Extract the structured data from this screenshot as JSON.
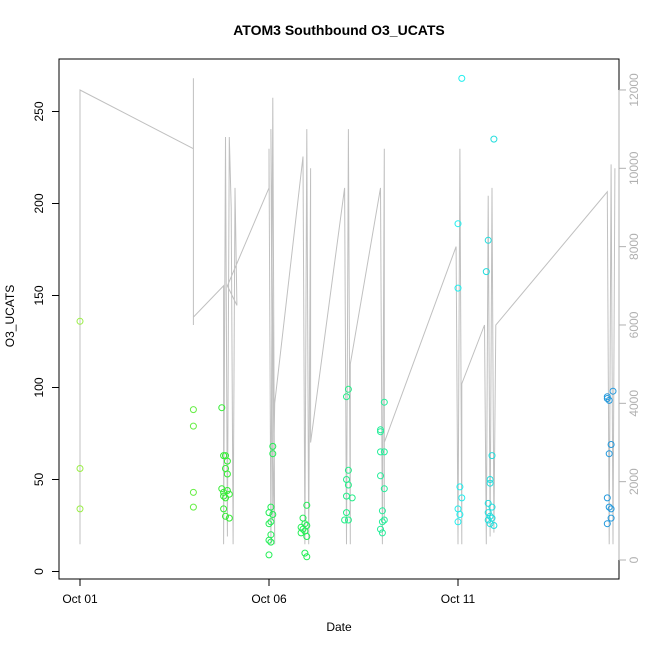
{
  "chart_data": {
    "type": "scatter",
    "title": "ATOM3 Southbound O3_UCATS",
    "xlabel": "Date",
    "ylabel": "O3_UCATS",
    "x_ticks": [
      "Oct 01",
      "Oct 06",
      "Oct 11"
    ],
    "x_tick_days": [
      1,
      6,
      11
    ],
    "xlim": [
      1,
      15
    ],
    "ylim": [
      0,
      260
    ],
    "y_ticks": [
      0,
      50,
      100,
      150,
      200,
      250
    ],
    "y2_ticks": [
      0,
      2000,
      4000,
      6000,
      8000,
      10000,
      12000
    ],
    "y2lim": [
      0,
      12000
    ],
    "grid": false,
    "legend": "none",
    "colors": {
      "line": "#c0c0c0",
      "axis": "#000000",
      "y2_axis": "#b0b0b0"
    },
    "points": [
      {
        "x": 1.0,
        "y": 136,
        "c": "#99ee44"
      },
      {
        "x": 1.0,
        "y": 56,
        "c": "#99ee44"
      },
      {
        "x": 1.0,
        "y": 34,
        "c": "#99ee44"
      },
      {
        "x": 4.0,
        "y": 88,
        "c": "#66ee44"
      },
      {
        "x": 4.0,
        "y": 79,
        "c": "#66ee44"
      },
      {
        "x": 4.0,
        "y": 43,
        "c": "#66ee44"
      },
      {
        "x": 4.0,
        "y": 35,
        "c": "#66ee44"
      },
      {
        "x": 4.75,
        "y": 89,
        "c": "#33ee33"
      },
      {
        "x": 4.8,
        "y": 63,
        "c": "#33ee33"
      },
      {
        "x": 4.85,
        "y": 63,
        "c": "#33ee33"
      },
      {
        "x": 4.9,
        "y": 60,
        "c": "#33ee33"
      },
      {
        "x": 4.85,
        "y": 56,
        "c": "#33ee33"
      },
      {
        "x": 4.9,
        "y": 53,
        "c": "#33ee33"
      },
      {
        "x": 4.75,
        "y": 45,
        "c": "#33ee33"
      },
      {
        "x": 4.8,
        "y": 43,
        "c": "#33ee33"
      },
      {
        "x": 4.9,
        "y": 44,
        "c": "#33ee33"
      },
      {
        "x": 4.95,
        "y": 42,
        "c": "#33ee33"
      },
      {
        "x": 4.8,
        "y": 41,
        "c": "#33ee33"
      },
      {
        "x": 4.85,
        "y": 40,
        "c": "#33ee33"
      },
      {
        "x": 4.8,
        "y": 34,
        "c": "#33ee33"
      },
      {
        "x": 4.85,
        "y": 30,
        "c": "#33ee33"
      },
      {
        "x": 4.95,
        "y": 29,
        "c": "#33ee33"
      },
      {
        "x": 6.1,
        "y": 68,
        "c": "#22ee55"
      },
      {
        "x": 6.1,
        "y": 64,
        "c": "#22ee55"
      },
      {
        "x": 6.05,
        "y": 35,
        "c": "#22ee55"
      },
      {
        "x": 6.0,
        "y": 32,
        "c": "#22ee55"
      },
      {
        "x": 6.1,
        "y": 31,
        "c": "#22ee55"
      },
      {
        "x": 6.05,
        "y": 27,
        "c": "#22ee55"
      },
      {
        "x": 6.0,
        "y": 26,
        "c": "#22ee55"
      },
      {
        "x": 6.05,
        "y": 20,
        "c": "#22ee55"
      },
      {
        "x": 6.0,
        "y": 17,
        "c": "#22ee55"
      },
      {
        "x": 6.05,
        "y": 16,
        "c": "#22ee55"
      },
      {
        "x": 6.0,
        "y": 9,
        "c": "#22ee55"
      },
      {
        "x": 7.0,
        "y": 36,
        "c": "#22ee55"
      },
      {
        "x": 6.9,
        "y": 29,
        "c": "#22ee55"
      },
      {
        "x": 6.95,
        "y": 26,
        "c": "#22ee55"
      },
      {
        "x": 7.0,
        "y": 25,
        "c": "#22ee55"
      },
      {
        "x": 6.85,
        "y": 24,
        "c": "#22ee55"
      },
      {
        "x": 6.9,
        "y": 23,
        "c": "#22ee55"
      },
      {
        "x": 6.95,
        "y": 22,
        "c": "#22ee55"
      },
      {
        "x": 6.85,
        "y": 21,
        "c": "#22ee55"
      },
      {
        "x": 7.0,
        "y": 19,
        "c": "#22ee55"
      },
      {
        "x": 6.95,
        "y": 10,
        "c": "#22ee55"
      },
      {
        "x": 7.0,
        "y": 8,
        "c": "#22ee55"
      },
      {
        "x": 8.1,
        "y": 99,
        "c": "#22ee88"
      },
      {
        "x": 8.05,
        "y": 95,
        "c": "#22ee88"
      },
      {
        "x": 8.1,
        "y": 55,
        "c": "#22ee88"
      },
      {
        "x": 8.05,
        "y": 50,
        "c": "#22ee88"
      },
      {
        "x": 8.1,
        "y": 47,
        "c": "#22ee88"
      },
      {
        "x": 8.05,
        "y": 41,
        "c": "#22ee88"
      },
      {
        "x": 8.2,
        "y": 40,
        "c": "#22ee88"
      },
      {
        "x": 8.05,
        "y": 32,
        "c": "#22ee88"
      },
      {
        "x": 8.0,
        "y": 28,
        "c": "#22ee88"
      },
      {
        "x": 8.1,
        "y": 28,
        "c": "#22ee88"
      },
      {
        "x": 9.05,
        "y": 92,
        "c": "#22ee99"
      },
      {
        "x": 8.95,
        "y": 77,
        "c": "#22ee99"
      },
      {
        "x": 8.95,
        "y": 76,
        "c": "#22ee99"
      },
      {
        "x": 8.95,
        "y": 65,
        "c": "#22ee99"
      },
      {
        "x": 9.05,
        "y": 65,
        "c": "#22ee99"
      },
      {
        "x": 8.95,
        "y": 52,
        "c": "#22ee99"
      },
      {
        "x": 9.05,
        "y": 45,
        "c": "#22ee99"
      },
      {
        "x": 9.0,
        "y": 33,
        "c": "#22ee99"
      },
      {
        "x": 9.05,
        "y": 28,
        "c": "#22ee99"
      },
      {
        "x": 9.0,
        "y": 27,
        "c": "#22ee99"
      },
      {
        "x": 8.95,
        "y": 23,
        "c": "#22ee99"
      },
      {
        "x": 9.0,
        "y": 21,
        "c": "#22ee99"
      },
      {
        "x": 11.1,
        "y": 268,
        "c": "#22eeee"
      },
      {
        "x": 11.0,
        "y": 189,
        "c": "#22eeee"
      },
      {
        "x": 11.0,
        "y": 154,
        "c": "#22eeee"
      },
      {
        "x": 11.05,
        "y": 46,
        "c": "#22eeee"
      },
      {
        "x": 11.1,
        "y": 40,
        "c": "#22eeee"
      },
      {
        "x": 11.0,
        "y": 34,
        "c": "#22eeee"
      },
      {
        "x": 11.05,
        "y": 31,
        "c": "#22eeee"
      },
      {
        "x": 11.0,
        "y": 27,
        "c": "#22eeee"
      },
      {
        "x": 11.95,
        "y": 235,
        "c": "#22dddd"
      },
      {
        "x": 11.8,
        "y": 180,
        "c": "#22dddd"
      },
      {
        "x": 11.75,
        "y": 163,
        "c": "#22dddd"
      },
      {
        "x": 11.9,
        "y": 63,
        "c": "#22dddd"
      },
      {
        "x": 11.85,
        "y": 50,
        "c": "#22dddd"
      },
      {
        "x": 11.85,
        "y": 48,
        "c": "#22dddd"
      },
      {
        "x": 11.8,
        "y": 37,
        "c": "#22dddd"
      },
      {
        "x": 11.9,
        "y": 35,
        "c": "#22dddd"
      },
      {
        "x": 11.8,
        "y": 32,
        "c": "#22dddd"
      },
      {
        "x": 11.85,
        "y": 30,
        "c": "#22dddd"
      },
      {
        "x": 11.9,
        "y": 29,
        "c": "#22dddd"
      },
      {
        "x": 11.8,
        "y": 28,
        "c": "#22dddd"
      },
      {
        "x": 11.85,
        "y": 26,
        "c": "#22dddd"
      },
      {
        "x": 11.95,
        "y": 25,
        "c": "#22dddd"
      },
      {
        "x": 15.1,
        "y": 98,
        "c": "#2299dd"
      },
      {
        "x": 14.95,
        "y": 95,
        "c": "#2299dd"
      },
      {
        "x": 14.95,
        "y": 94,
        "c": "#2299dd"
      },
      {
        "x": 15.0,
        "y": 93,
        "c": "#2299dd"
      },
      {
        "x": 15.05,
        "y": 69,
        "c": "#2299dd"
      },
      {
        "x": 15.0,
        "y": 64,
        "c": "#2299dd"
      },
      {
        "x": 14.95,
        "y": 40,
        "c": "#2299dd"
      },
      {
        "x": 15.0,
        "y": 35,
        "c": "#2299dd"
      },
      {
        "x": 15.05,
        "y": 34,
        "c": "#2299dd"
      },
      {
        "x": 15.05,
        "y": 29,
        "c": "#2299dd"
      },
      {
        "x": 14.95,
        "y": 26,
        "c": "#2299dd"
      }
    ],
    "y2_line": [
      [
        1.0,
        400
      ],
      [
        1.0,
        12000
      ],
      [
        4.0,
        10500
      ],
      [
        4.0,
        6000
      ],
      [
        4.0,
        12300
      ],
      [
        4.0,
        6500
      ],
      [
        4.0,
        6200
      ],
      [
        4.8,
        7000
      ],
      [
        4.8,
        400
      ],
      [
        4.85,
        10800
      ],
      [
        4.9,
        600
      ],
      [
        4.95,
        10800
      ],
      [
        5.0,
        9000
      ],
      [
        5.05,
        400
      ],
      [
        5.1,
        9500
      ],
      [
        5.15,
        6500
      ],
      [
        4.9,
        7000
      ],
      [
        6.0,
        9500
      ],
      [
        6.0,
        10500
      ],
      [
        6.05,
        400
      ],
      [
        6.1,
        11800
      ],
      [
        6.15,
        400
      ],
      [
        6.05,
        11000
      ],
      [
        6.1,
        1000
      ],
      [
        6.15,
        4000
      ],
      [
        6.9,
        10300
      ],
      [
        6.95,
        400
      ],
      [
        7.0,
        11000
      ],
      [
        7.05,
        400
      ],
      [
        7.1,
        10000
      ],
      [
        7.1,
        3000
      ],
      [
        8.0,
        9500
      ],
      [
        8.05,
        400
      ],
      [
        8.1,
        11000
      ],
      [
        8.15,
        400
      ],
      [
        8.15,
        5000
      ],
      [
        8.95,
        9500
      ],
      [
        9.0,
        400
      ],
      [
        9.05,
        10500
      ],
      [
        9.05,
        1000
      ],
      [
        9.05,
        3000
      ],
      [
        10.95,
        8000
      ],
      [
        11.0,
        400
      ],
      [
        11.05,
        10500
      ],
      [
        11.1,
        400
      ],
      [
        11.1,
        4500
      ],
      [
        11.7,
        6000
      ],
      [
        11.75,
        400
      ],
      [
        11.8,
        9300
      ],
      [
        11.85,
        600
      ],
      [
        11.9,
        9500
      ],
      [
        11.95,
        700
      ],
      [
        12.0,
        6000
      ],
      [
        14.95,
        9400
      ],
      [
        15.0,
        400
      ],
      [
        15.05,
        10100
      ],
      [
        15.1,
        400
      ],
      [
        15.15,
        10000
      ]
    ]
  }
}
